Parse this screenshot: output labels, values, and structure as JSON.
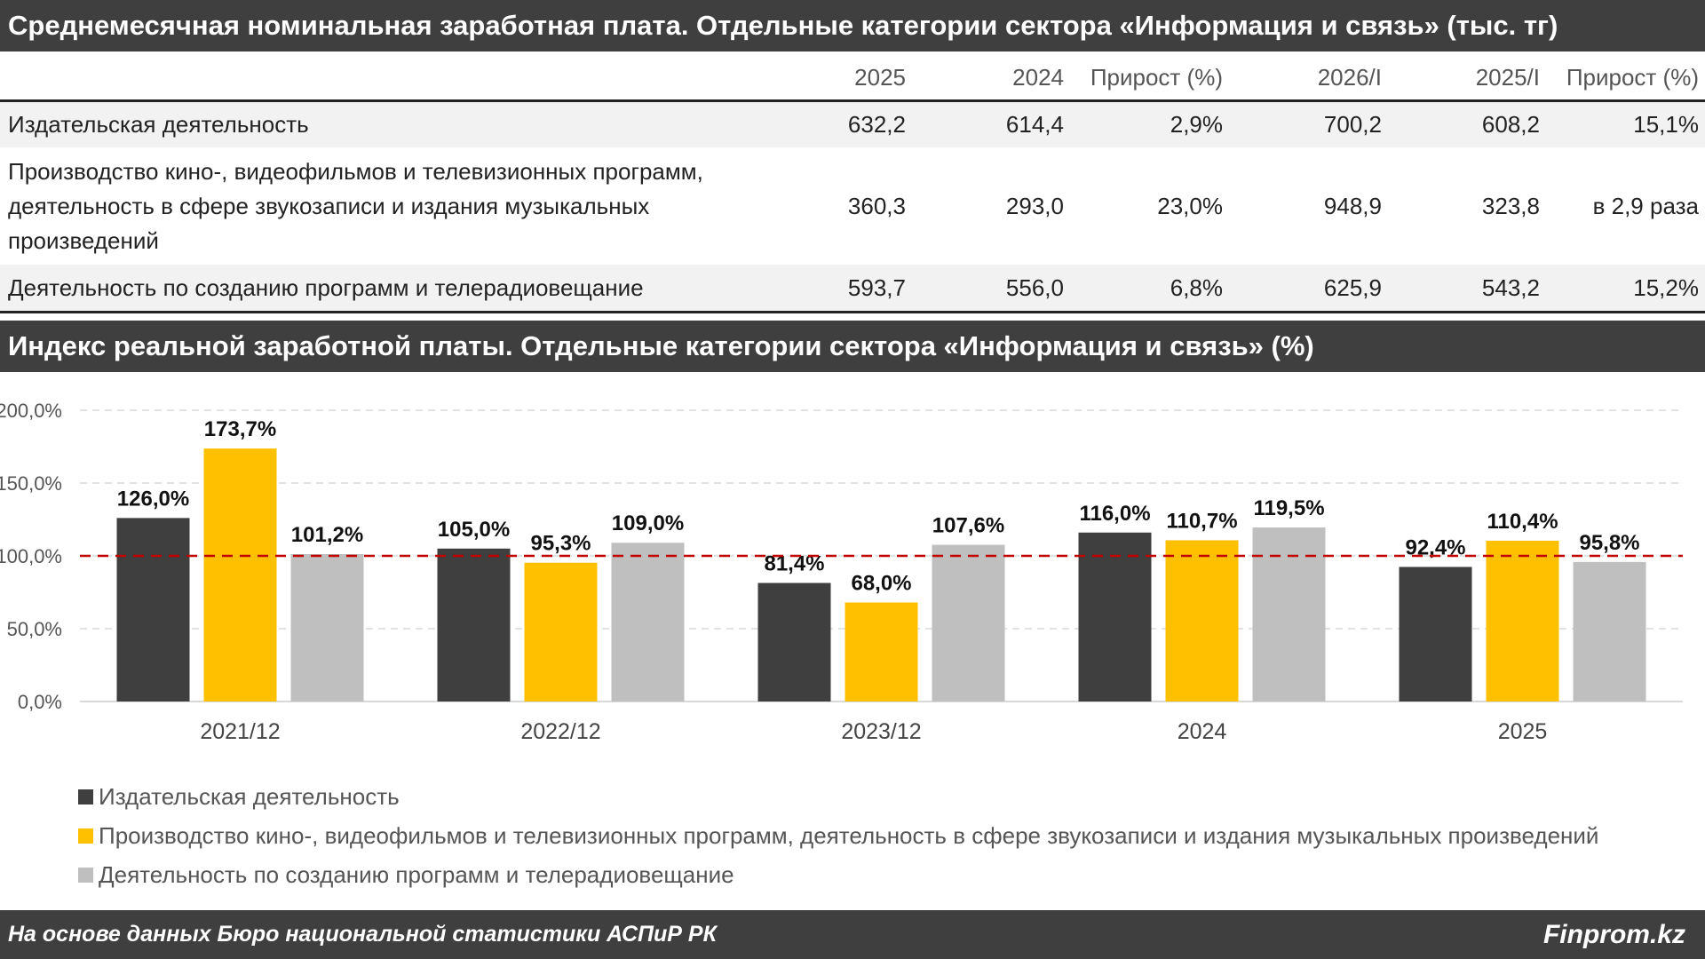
{
  "table": {
    "title": "Среднемесячная номинальная заработная плата. Отдельные категории сектора «Информация и связь» (тыс. тг)",
    "headers": [
      "2025",
      "2024",
      "Прирост (%)",
      "2026/I",
      "2025/I",
      "Прирост (%)"
    ],
    "rows": [
      {
        "name": "Издательская деятельность",
        "values": [
          "632,2",
          "614,4",
          "2,9%",
          "700,2",
          "608,2",
          "15,1%"
        ]
      },
      {
        "name": "Производство кино-, видеофильмов и телевизионных программ, деятельность в сфере звукозаписи и издания музыкальных произведений",
        "values": [
          "360,3",
          "293,0",
          "23,0%",
          "948,9",
          "323,8",
          "в 2,9 раза"
        ]
      },
      {
        "name": "Деятельность по созданию программ и телерадиовещание",
        "values": [
          "593,7",
          "556,0",
          "6,8%",
          "625,9",
          "543,2",
          "15,2%"
        ]
      }
    ]
  },
  "chart_title": "Индекс реальной заработной платы. Отдельные категории сектора «Информация и связь» (%)",
  "chart_data": {
    "type": "bar",
    "categories": [
      "2021/12",
      "2022/12",
      "2023/12",
      "2024",
      "2025"
    ],
    "series": [
      {
        "name": "Издательская деятельность",
        "color": "#3f3f3f",
        "values": [
          126.0,
          105.0,
          81.4,
          116.0,
          92.4
        ],
        "labels": [
          "126,0%",
          "105,0%",
          "81,4%",
          "116,0%",
          "92,4%"
        ]
      },
      {
        "name": "Производство кино-, видеофильмов и телевизионных программ, деятельность в сфере звукозаписи и издания музыкальных произведений",
        "color": "#ffc000",
        "values": [
          173.7,
          95.3,
          68.0,
          110.7,
          110.4
        ],
        "labels": [
          "173,7%",
          "95,3%",
          "68,0%",
          "110,7%",
          "110,4%"
        ]
      },
      {
        "name": "Деятельность по созданию программ и телерадиовещание",
        "color": "#bfbfbf",
        "values": [
          101.2,
          109.0,
          107.6,
          119.5,
          95.8
        ],
        "labels": [
          "101,2%",
          "109,0%",
          "107,6%",
          "119,5%",
          "95,8%"
        ]
      }
    ],
    "yticks": [
      "0,0%",
      "50,0%",
      "100,0%",
      "150,0%",
      "200,0%"
    ],
    "ylim": [
      0,
      200
    ],
    "reference_line": 100,
    "reference_color": "#c00000",
    "grid": true,
    "legend_position": "bottom"
  },
  "footer": {
    "source": "На основе данных Бюро национальной статистики АСПиР РК",
    "brand": "Finprom.kz"
  }
}
